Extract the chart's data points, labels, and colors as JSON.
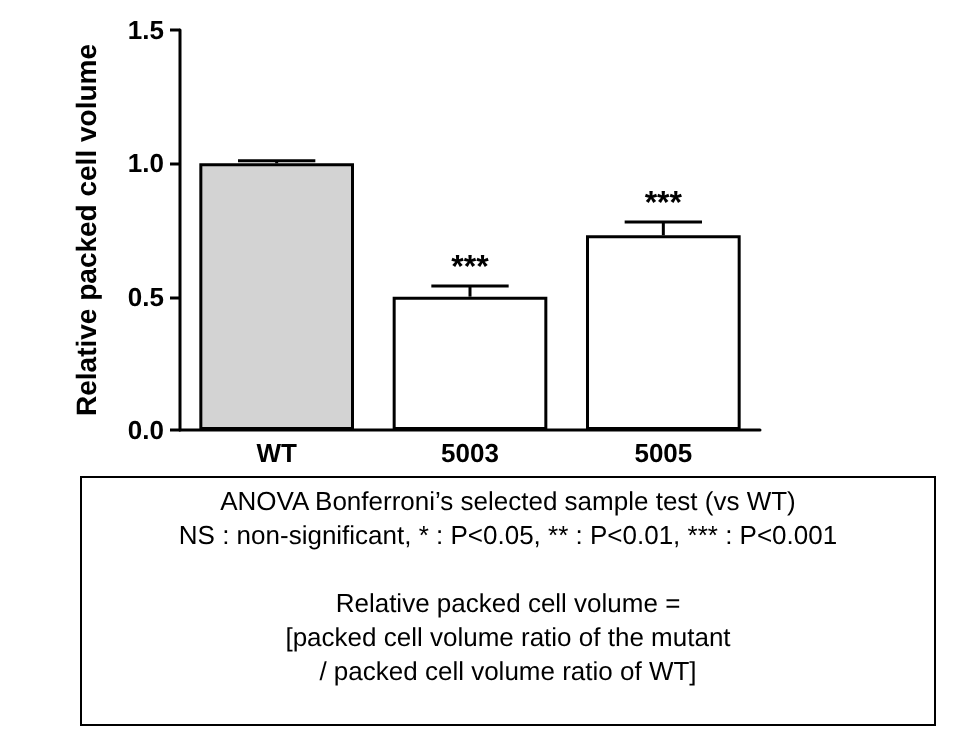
{
  "chart_data": {
    "type": "bar",
    "ylabel": "Relative packed cell volume",
    "categories": [
      "WT",
      "5003",
      "5005"
    ],
    "values": [
      1.0,
      0.5,
      0.73
    ],
    "colors": [
      "#d3d3d3",
      "#ffffff",
      "#ffffff"
    ],
    "errors": [
      [
        1.0,
        1.01
      ],
      [
        0.5,
        0.54
      ],
      [
        0.73,
        0.78
      ]
    ],
    "ylim": [
      0,
      1.5
    ],
    "yticks": [
      {
        "value": 0,
        "label": "0.0"
      },
      {
        "value": 0.5,
        "label": "0.5"
      },
      {
        "value": 1,
        "label": "1.0"
      },
      {
        "value": 1.5,
        "label": "1.5"
      }
    ],
    "grid": false,
    "annotations": [
      {
        "text": "***",
        "x": "5003",
        "y": 0.54
      },
      {
        "text": "***",
        "x": "5005",
        "y": 0.78
      },
      "ANOVA Bonferroni’s selected sample test (vs WT)\nNS : non-significant, * : P<0.05, ** : P<0.01, *** : P<0.001",
      "Relative packed cell volume =\n[packed cell volume ratio of the mutant\n/ packed cell volume ratio of WT]"
    ]
  }
}
